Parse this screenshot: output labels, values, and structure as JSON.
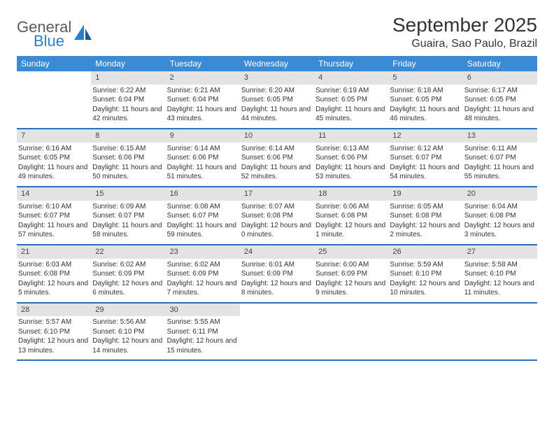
{
  "brand": {
    "top": "General",
    "bottom": "Blue"
  },
  "title": "September 2025",
  "location": "Guaira, Sao Paulo, Brazil",
  "colors": {
    "header_bg": "#3b8bd4",
    "row_border": "#2a6fb5",
    "daynum_bg": "#e3e3e3",
    "text": "#333333",
    "brand_gray": "#5a5a5a",
    "brand_blue": "#2a7fc9"
  },
  "daysOfWeek": [
    "Sunday",
    "Monday",
    "Tuesday",
    "Wednesday",
    "Thursday",
    "Friday",
    "Saturday"
  ],
  "weeks": [
    [
      {
        "n": "",
        "sunrise": "",
        "sunset": "",
        "daylight": ""
      },
      {
        "n": "1",
        "sunrise": "Sunrise: 6:22 AM",
        "sunset": "Sunset: 6:04 PM",
        "daylight": "Daylight: 11 hours and 42 minutes."
      },
      {
        "n": "2",
        "sunrise": "Sunrise: 6:21 AM",
        "sunset": "Sunset: 6:04 PM",
        "daylight": "Daylight: 11 hours and 43 minutes."
      },
      {
        "n": "3",
        "sunrise": "Sunrise: 6:20 AM",
        "sunset": "Sunset: 6:05 PM",
        "daylight": "Daylight: 11 hours and 44 minutes."
      },
      {
        "n": "4",
        "sunrise": "Sunrise: 6:19 AM",
        "sunset": "Sunset: 6:05 PM",
        "daylight": "Daylight: 11 hours and 45 minutes."
      },
      {
        "n": "5",
        "sunrise": "Sunrise: 6:18 AM",
        "sunset": "Sunset: 6:05 PM",
        "daylight": "Daylight: 11 hours and 46 minutes."
      },
      {
        "n": "6",
        "sunrise": "Sunrise: 6:17 AM",
        "sunset": "Sunset: 6:05 PM",
        "daylight": "Daylight: 11 hours and 48 minutes."
      }
    ],
    [
      {
        "n": "7",
        "sunrise": "Sunrise: 6:16 AM",
        "sunset": "Sunset: 6:05 PM",
        "daylight": "Daylight: 11 hours and 49 minutes."
      },
      {
        "n": "8",
        "sunrise": "Sunrise: 6:15 AM",
        "sunset": "Sunset: 6:06 PM",
        "daylight": "Daylight: 11 hours and 50 minutes."
      },
      {
        "n": "9",
        "sunrise": "Sunrise: 6:14 AM",
        "sunset": "Sunset: 6:06 PM",
        "daylight": "Daylight: 11 hours and 51 minutes."
      },
      {
        "n": "10",
        "sunrise": "Sunrise: 6:14 AM",
        "sunset": "Sunset: 6:06 PM",
        "daylight": "Daylight: 11 hours and 52 minutes."
      },
      {
        "n": "11",
        "sunrise": "Sunrise: 6:13 AM",
        "sunset": "Sunset: 6:06 PM",
        "daylight": "Daylight: 11 hours and 53 minutes."
      },
      {
        "n": "12",
        "sunrise": "Sunrise: 6:12 AM",
        "sunset": "Sunset: 6:07 PM",
        "daylight": "Daylight: 11 hours and 54 minutes."
      },
      {
        "n": "13",
        "sunrise": "Sunrise: 6:11 AM",
        "sunset": "Sunset: 6:07 PM",
        "daylight": "Daylight: 11 hours and 55 minutes."
      }
    ],
    [
      {
        "n": "14",
        "sunrise": "Sunrise: 6:10 AM",
        "sunset": "Sunset: 6:07 PM",
        "daylight": "Daylight: 11 hours and 57 minutes."
      },
      {
        "n": "15",
        "sunrise": "Sunrise: 6:09 AM",
        "sunset": "Sunset: 6:07 PM",
        "daylight": "Daylight: 11 hours and 58 minutes."
      },
      {
        "n": "16",
        "sunrise": "Sunrise: 6:08 AM",
        "sunset": "Sunset: 6:07 PM",
        "daylight": "Daylight: 11 hours and 59 minutes."
      },
      {
        "n": "17",
        "sunrise": "Sunrise: 6:07 AM",
        "sunset": "Sunset: 6:08 PM",
        "daylight": "Daylight: 12 hours and 0 minutes."
      },
      {
        "n": "18",
        "sunrise": "Sunrise: 6:06 AM",
        "sunset": "Sunset: 6:08 PM",
        "daylight": "Daylight: 12 hours and 1 minute."
      },
      {
        "n": "19",
        "sunrise": "Sunrise: 6:05 AM",
        "sunset": "Sunset: 6:08 PM",
        "daylight": "Daylight: 12 hours and 2 minutes."
      },
      {
        "n": "20",
        "sunrise": "Sunrise: 6:04 AM",
        "sunset": "Sunset: 6:08 PM",
        "daylight": "Daylight: 12 hours and 3 minutes."
      }
    ],
    [
      {
        "n": "21",
        "sunrise": "Sunrise: 6:03 AM",
        "sunset": "Sunset: 6:08 PM",
        "daylight": "Daylight: 12 hours and 5 minutes."
      },
      {
        "n": "22",
        "sunrise": "Sunrise: 6:02 AM",
        "sunset": "Sunset: 6:09 PM",
        "daylight": "Daylight: 12 hours and 6 minutes."
      },
      {
        "n": "23",
        "sunrise": "Sunrise: 6:02 AM",
        "sunset": "Sunset: 6:09 PM",
        "daylight": "Daylight: 12 hours and 7 minutes."
      },
      {
        "n": "24",
        "sunrise": "Sunrise: 6:01 AM",
        "sunset": "Sunset: 6:09 PM",
        "daylight": "Daylight: 12 hours and 8 minutes."
      },
      {
        "n": "25",
        "sunrise": "Sunrise: 6:00 AM",
        "sunset": "Sunset: 6:09 PM",
        "daylight": "Daylight: 12 hours and 9 minutes."
      },
      {
        "n": "26",
        "sunrise": "Sunrise: 5:59 AM",
        "sunset": "Sunset: 6:10 PM",
        "daylight": "Daylight: 12 hours and 10 minutes."
      },
      {
        "n": "27",
        "sunrise": "Sunrise: 5:58 AM",
        "sunset": "Sunset: 6:10 PM",
        "daylight": "Daylight: 12 hours and 11 minutes."
      }
    ],
    [
      {
        "n": "28",
        "sunrise": "Sunrise: 5:57 AM",
        "sunset": "Sunset: 6:10 PM",
        "daylight": "Daylight: 12 hours and 13 minutes."
      },
      {
        "n": "29",
        "sunrise": "Sunrise: 5:56 AM",
        "sunset": "Sunset: 6:10 PM",
        "daylight": "Daylight: 12 hours and 14 minutes."
      },
      {
        "n": "30",
        "sunrise": "Sunrise: 5:55 AM",
        "sunset": "Sunset: 6:11 PM",
        "daylight": "Daylight: 12 hours and 15 minutes."
      },
      {
        "n": "",
        "sunrise": "",
        "sunset": "",
        "daylight": ""
      },
      {
        "n": "",
        "sunrise": "",
        "sunset": "",
        "daylight": ""
      },
      {
        "n": "",
        "sunrise": "",
        "sunset": "",
        "daylight": ""
      },
      {
        "n": "",
        "sunrise": "",
        "sunset": "",
        "daylight": ""
      }
    ]
  ]
}
